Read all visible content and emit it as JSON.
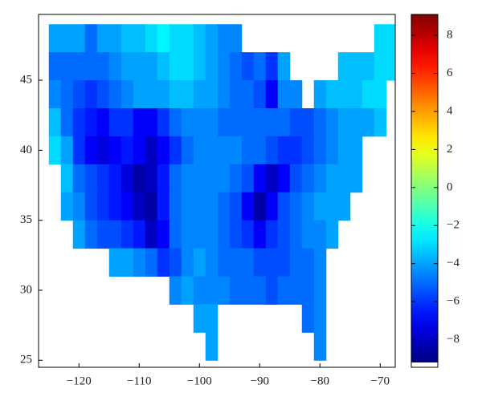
{
  "chart_data": {
    "type": "heatmap",
    "x": [
      -124,
      -122,
      -120,
      -118,
      -116,
      -114,
      -112,
      -110,
      -108,
      -106,
      -104,
      -102,
      -100,
      -98,
      -96,
      -94,
      -92,
      -90,
      -88,
      -86,
      -84,
      -82,
      -80,
      -78,
      -76,
      -74,
      -72,
      -70,
      -68
    ],
    "y": [
      48,
      46,
      44,
      42,
      40,
      38,
      36,
      34,
      32,
      30,
      28,
      26
    ],
    "values": [
      [
        -4,
        -4,
        -4,
        -5,
        -4,
        -4,
        -3.5,
        -3.5,
        -3,
        -2.5,
        -3,
        -3,
        -3.5,
        -4,
        -4.5,
        -4.5,
        null,
        null,
        null,
        null,
        null,
        null,
        null,
        null,
        null,
        null,
        null,
        -3,
        -3
      ],
      [
        -5,
        -5,
        -5,
        -5,
        -5,
        -4.5,
        -4,
        -4,
        -4,
        -3.5,
        -3,
        -3,
        -3.5,
        -4,
        -4.5,
        -5,
        -5.5,
        -5,
        -6,
        -4,
        null,
        null,
        null,
        null,
        -3.5,
        -3.5,
        -3.5,
        -3,
        -3
      ],
      [
        -4.5,
        -5,
        -5.5,
        -6,
        -5.5,
        -5,
        -4.5,
        -4,
        -4,
        -4,
        -3.5,
        -3.5,
        -4,
        -4,
        -4.5,
        -5,
        -5,
        -5.5,
        -7,
        -4.5,
        -4.5,
        null,
        -4,
        -3.5,
        -3.5,
        -3.5,
        -3,
        -3,
        null
      ],
      [
        -3.5,
        -5,
        -6,
        -6.5,
        -7,
        -6,
        -6,
        -7,
        -7,
        -6,
        -5,
        -4.5,
        -4.5,
        -4.5,
        -5,
        -5,
        -5,
        -5,
        -5,
        -5,
        -5.5,
        -5.5,
        -5,
        -4.5,
        -4,
        -4,
        -4,
        -3.5,
        null
      ],
      [
        -3,
        -4,
        -6,
        -7,
        -7.5,
        -7,
        -6.5,
        -7,
        -8,
        -7,
        -6,
        -5,
        -4.5,
        -4.5,
        -4.5,
        -4.5,
        -5,
        -5,
        -5.5,
        -6,
        -6,
        -5.5,
        -5,
        -4.5,
        -4,
        -4,
        null,
        null,
        null
      ],
      [
        null,
        -3.5,
        -5,
        -5.5,
        -6,
        -6.5,
        -7.5,
        -8.5,
        -8,
        -6.5,
        -5,
        -4.5,
        -4.5,
        -4.5,
        -4.5,
        -5,
        -5.5,
        -7,
        -8,
        -7,
        -5.5,
        -5,
        -4.5,
        -4,
        -4,
        -4,
        null,
        null,
        null
      ],
      [
        null,
        -4,
        -4.5,
        -5.5,
        -6,
        -6.5,
        -7,
        -8,
        -8.5,
        -6.5,
        -5,
        -4.5,
        -4.5,
        -4.5,
        -5,
        -5.5,
        -7,
        -8.5,
        -7,
        -5.5,
        -5,
        -4.5,
        -4,
        -4,
        -4,
        null,
        null,
        null,
        null
      ],
      [
        null,
        null,
        -4,
        -5,
        -5.5,
        -5.5,
        -6,
        -6.5,
        -8,
        -7,
        -5,
        -4.5,
        -4.5,
        -4.5,
        -5,
        -5.5,
        -6,
        -7,
        -6,
        -5.5,
        -5,
        -4.5,
        -4.5,
        -4,
        null,
        null,
        null,
        null,
        null
      ],
      [
        null,
        null,
        null,
        null,
        null,
        -4,
        -4,
        -4.5,
        -5,
        -6,
        -5.5,
        -4.5,
        -4,
        -4.5,
        -5,
        -5,
        -5,
        -5.5,
        -5.5,
        -5.5,
        -5,
        -5,
        -4.5,
        null,
        null,
        null,
        null,
        null,
        null
      ],
      [
        null,
        null,
        null,
        null,
        null,
        null,
        null,
        null,
        null,
        null,
        -4.5,
        -4,
        -4.5,
        -4.5,
        -4.5,
        -5,
        -5,
        -5,
        -5.5,
        -5,
        -5,
        -5,
        -4.5,
        null,
        null,
        null,
        null,
        null,
        null
      ],
      [
        null,
        null,
        null,
        null,
        null,
        null,
        null,
        null,
        null,
        null,
        null,
        null,
        -4,
        -4,
        null,
        null,
        null,
        null,
        null,
        null,
        null,
        -5,
        -4.5,
        null,
        null,
        null,
        null,
        null,
        null
      ],
      [
        null,
        null,
        null,
        null,
        null,
        null,
        null,
        null,
        null,
        null,
        null,
        null,
        null,
        -4,
        null,
        null,
        null,
        null,
        null,
        null,
        null,
        null,
        -4.5,
        null,
        null,
        null,
        null,
        null,
        null
      ]
    ],
    "xlim": [
      -126.7,
      -67.5
    ],
    "ylim": [
      24.5,
      49.7
    ],
    "xticks": [
      {
        "value": -120,
        "label": "−120"
      },
      {
        "value": -110,
        "label": "−110"
      },
      {
        "value": -100,
        "label": "−100"
      },
      {
        "value": -90,
        "label": "−90"
      },
      {
        "value": -80,
        "label": "−80"
      },
      {
        "value": -70,
        "label": "−70"
      }
    ],
    "yticks": [
      25,
      30,
      35,
      40,
      45
    ],
    "colormap": "jet",
    "clim": [
      -9.2,
      9.1
    ],
    "cticks": [
      {
        "value": -8,
        "label": "−8"
      },
      {
        "value": -6,
        "label": "−6"
      },
      {
        "value": -4,
        "label": "−4"
      },
      {
        "value": -2,
        "label": "−2"
      },
      0,
      2,
      4,
      6,
      8
    ]
  }
}
